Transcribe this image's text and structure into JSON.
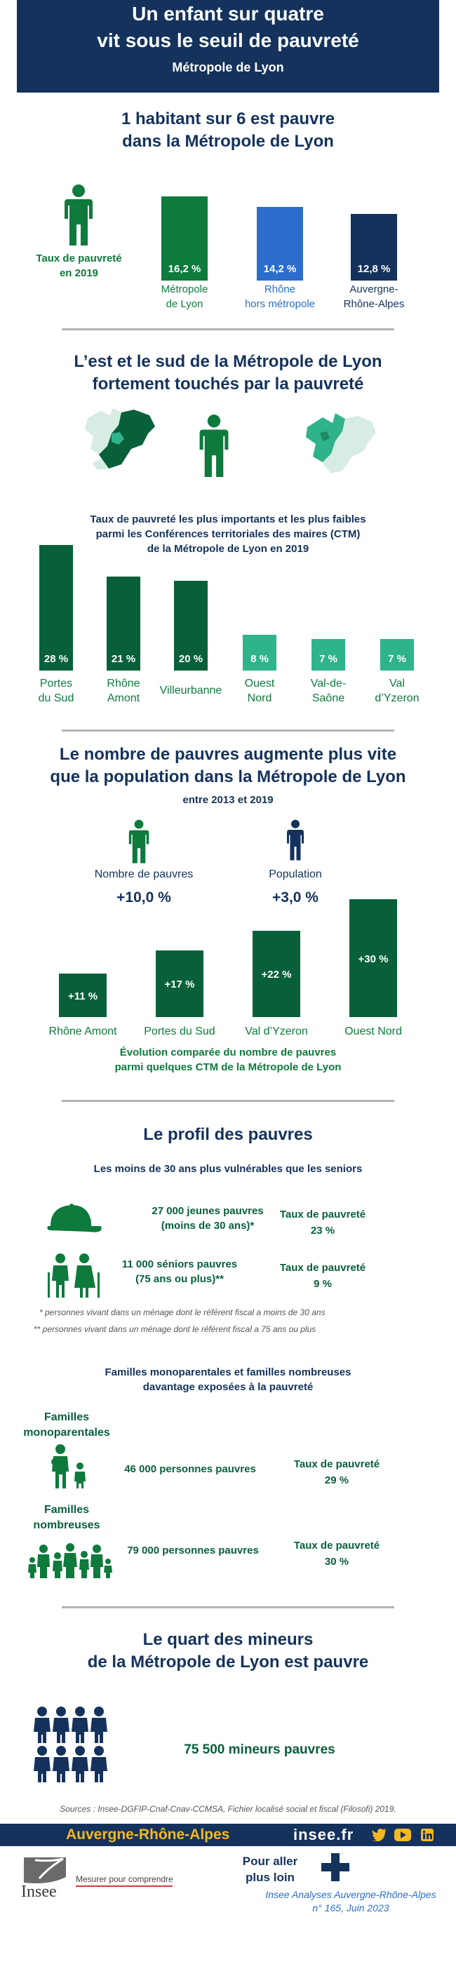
{
  "header": {
    "title_line1": "Un enfant sur quatre",
    "title_line2": "vit sous le seuil de pauvreté",
    "subtitle": "Métropole de Lyon"
  },
  "section1": {
    "title_line1": "1 habitant sur 6 est pauvre",
    "title_line2": "dans la Métropole de Lyon",
    "legend_line1": "Taux de pauvreté",
    "legend_line2": "en 2019",
    "bars": [
      {
        "value": 16.2,
        "label_value": "16,2 %",
        "label_line1": "Métropole",
        "label_line2": "de Lyon",
        "color": "#0e7a3c"
      },
      {
        "value": 14.2,
        "label_value": "14,2 %",
        "label_line1": "Rhône",
        "label_line2": "hors métropole",
        "color": "#2a6dcc"
      },
      {
        "value": 12.8,
        "label_value": "12,8 %",
        "label_line1": "Auvergne-",
        "label_line2": "Rhône-Alpes",
        "color": "#14325c"
      }
    ]
  },
  "section2": {
    "title_line1": "L’est et le sud de la Métropole de Lyon",
    "title_line2": "fortement touchés par la pauvreté",
    "caption_line1": "Taux de pauvreté les plus importants et les plus faibles",
    "caption_line2": "parmi les Conférences territoriales des maires (CTM)",
    "caption_line3": "de la Métropole de Lyon en 2019",
    "bars": [
      {
        "value": 28,
        "label_value": "28 %",
        "label_line1": "Portes",
        "label_line2": "du Sud",
        "color": "#08603a"
      },
      {
        "value": 21,
        "label_value": "21 %",
        "label_line1": "Rhône",
        "label_line2": "Amont",
        "color": "#08603a"
      },
      {
        "value": 20,
        "label_value": "20 %",
        "label_line1": "Villeurbanne",
        "label_line2": "",
        "color": "#08603a"
      },
      {
        "value": 8,
        "label_value": "8 %",
        "label_line1": "Ouest",
        "label_line2": "Nord",
        "color": "#2fb38a"
      },
      {
        "value": 7,
        "label_value": "7 %",
        "label_line1": "Val-de-",
        "label_line2": "Saône",
        "color": "#2fb38a"
      },
      {
        "value": 7,
        "label_value": "7 %",
        "label_line1": "Val",
        "label_line2": "d’Yzeron",
        "color": "#2fb38a"
      }
    ]
  },
  "section3": {
    "title_line1": "Le nombre de pauvres augmente plus vite",
    "title_line2": "que la population dans la Métropole de Lyon",
    "period": "entre 2013 et 2019",
    "poor_label": "Nombre de pauvres",
    "poor_value": "+10,0 %",
    "pop_label": "Population",
    "pop_value": "+3,0 %",
    "bars": [
      {
        "value": 11,
        "label_value": "+11 %",
        "label": "Rhône Amont"
      },
      {
        "value": 17,
        "label_value": "+17 %",
        "label": "Portes du Sud"
      },
      {
        "value": 22,
        "label_value": "+22 %",
        "label": "Val d’Yzeron"
      },
      {
        "value": 30,
        "label_value": "+30 %",
        "label": "Ouest Nord"
      }
    ],
    "caption_line1": "Évolution comparée du nombre de pauvres",
    "caption_line2": "parmi quelques CTM de la Métropole de Lyon"
  },
  "section4": {
    "title": "Le profil des pauvres",
    "subtitle": "Les moins de 30 ans plus vulnérables que les seniors",
    "young_line1": "27 000 jeunes pauvres",
    "young_line2": "(moins de 30 ans)*",
    "young_rate_label": "Taux de pauvreté",
    "young_rate": "23 %",
    "senior_line1": "11 000 séniors pauvres",
    "senior_line2": "(75 ans ou plus)**",
    "senior_rate_label": "Taux de pauvreté",
    "senior_rate": "9 %",
    "note1": "* personnes vivant dans un ménage dont le référent fiscal a moins de 30 ans",
    "note2": "**  personnes vivant dans un ménage dont le référent fiscal a 75 ans ou plus",
    "families_title_line1": "Familles monoparentales et familles nombreuses",
    "families_title_line2": "davantage exposées à la pauvreté",
    "mono_label_line1": "Familles",
    "mono_label_line2": "monoparentales",
    "mono_count": "46 000 personnes pauvres",
    "mono_rate_label": "Taux de pauvreté",
    "mono_rate": "29 %",
    "big_label_line1": "Familles",
    "big_label_line2": "nombreuses",
    "big_count": "79 000 personnes pauvres",
    "big_rate_label": "Taux de pauvreté",
    "big_rate": "30 %"
  },
  "section5": {
    "title_line1": "Le quart des mineurs",
    "title_line2": "de la Métropole de Lyon est pauvre",
    "count": "75 500 mineurs pauvres"
  },
  "sources": "Sources : Insee-DGFIP-Cnaf-Cnav-CCMSA, Fichier localisé social et fiscal (Filosofi) 2019.",
  "footer": {
    "region": "Auvergne-Rhône-Alpes",
    "site": "insee.fr",
    "logo_text": "Insee",
    "tagline": "Mesurer pour comprendre",
    "more_line1": "Pour aller",
    "more_line2": "plus loin",
    "pub_line1": "Insee Analyses Auvergne-Rhône-Alpes",
    "pub_line2": "n° 165, Juin 2023"
  },
  "colors": {
    "navy": "#14325c",
    "green": "#0e7a3c",
    "dark_green": "#08603a",
    "light_green": "#2fb38a",
    "blue": "#2a6dcc",
    "yellow": "#f3b822"
  }
}
